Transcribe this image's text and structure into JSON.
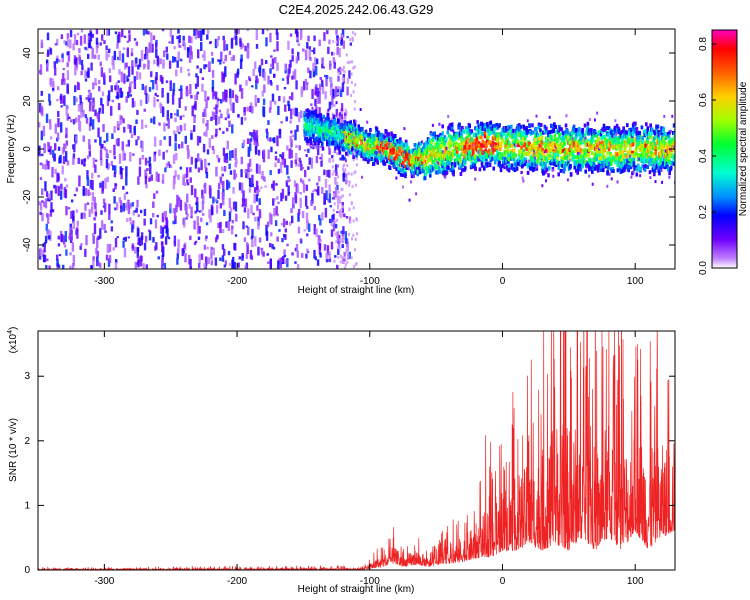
{
  "chart_data": [
    {
      "type": "heatmap",
      "title": "C2E4.2025.242.06.43.G29",
      "xlabel": "Height of straight line (km)",
      "ylabel": "Frequency (Hz)",
      "xlim": [
        -350,
        130
      ],
      "ylim": [
        -50,
        50
      ],
      "x_ticks": [
        -300,
        -200,
        -100,
        0,
        100
      ],
      "y_ticks": [
        -40,
        -20,
        0,
        20,
        40
      ],
      "colorbar": {
        "label": "Normalized spectral amplitude",
        "range": [
          0.0,
          0.85
        ],
        "ticks": [
          0.0,
          0.2,
          0.4,
          0.6,
          0.8
        ],
        "colormap": [
          "#ffffff",
          "#c080ff",
          "#6000ff",
          "#0000ff",
          "#00a0ff",
          "#00ffc0",
          "#00ff00",
          "#c0ff00",
          "#ffc000",
          "#ff6000",
          "#ff0000",
          "#ff00c0"
        ]
      },
      "regions": [
        {
          "name": "noise",
          "x_range": [
            -350,
            -115
          ],
          "freq_range": [
            -50,
            50
          ],
          "amplitude": "low (0.0-0.1)"
        },
        {
          "name": "signal-track",
          "x_range": [
            -150,
            130
          ],
          "freq_center": [
            10,
            5,
            0,
            -5,
            0,
            2,
            0,
            0
          ],
          "freq_center_x": [
            -150,
            -120,
            -90,
            -70,
            -40,
            -10,
            30,
            130
          ],
          "amplitude": "0.3-0.85"
        }
      ]
    },
    {
      "type": "line",
      "xlabel": "Height of straight line (km)",
      "ylabel": "SNR (10 * v/v)",
      "y_scale_label": "(x10",
      "y_scale_exp": "4",
      "y_scale_close": ")",
      "xlim": [
        -350,
        130
      ],
      "ylim": [
        0,
        3.7
      ],
      "x_ticks": [
        -300,
        -200,
        -100,
        0,
        100
      ],
      "y_ticks": [
        0,
        1,
        2,
        3
      ],
      "color": "#ee2222",
      "envelope": {
        "x": [
          -350,
          -110,
          -100,
          -90,
          -82,
          -75,
          -65,
          -55,
          -45,
          -35,
          -25,
          -15,
          -8,
          0,
          10,
          20,
          30,
          40,
          50,
          60,
          70,
          80,
          90,
          100,
          110,
          120,
          130
        ],
        "upper": [
          0.03,
          0.05,
          0.15,
          0.35,
          0.55,
          0.3,
          0.5,
          0.25,
          0.5,
          0.7,
          0.9,
          1.3,
          1.6,
          2.0,
          2.2,
          2.5,
          2.9,
          3.7,
          3.5,
          3.5,
          3.0,
          3.6,
          3.1,
          3.2,
          3.3,
          2.9,
          3.0
        ],
        "lower": [
          0.0,
          0.0,
          0.02,
          0.05,
          0.1,
          0.05,
          0.08,
          0.05,
          0.1,
          0.1,
          0.15,
          0.2,
          0.2,
          0.3,
          0.3,
          0.4,
          0.3,
          0.4,
          0.3,
          0.5,
          0.3,
          0.5,
          0.3,
          0.6,
          0.3,
          0.5,
          0.6
        ]
      }
    }
  ]
}
